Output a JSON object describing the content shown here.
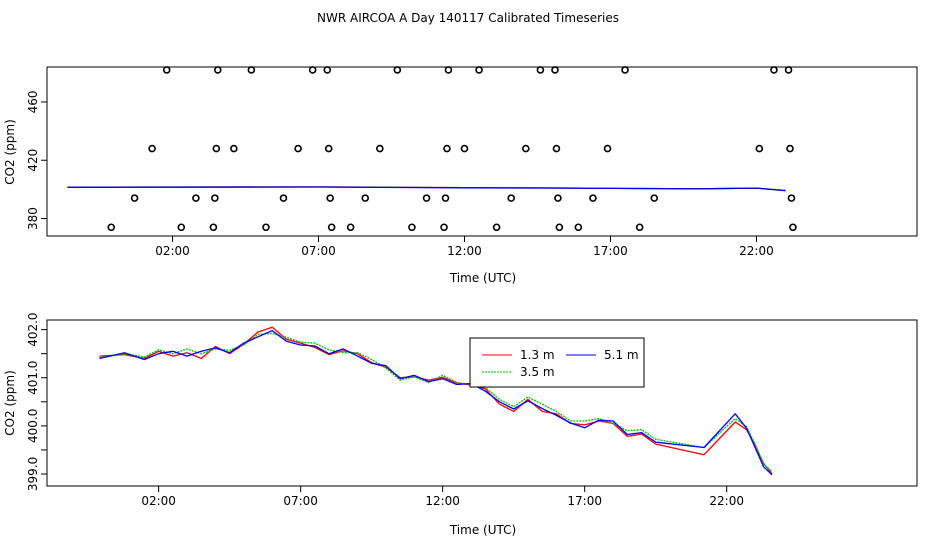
{
  "page": {
    "title": "NWR AIRCOA A  Day 140117  Calibrated Timeseries"
  },
  "chart_data": [
    {
      "type": "scatter",
      "xlabel": "Time (UTC)",
      "ylabel": "CO2 (ppm)",
      "xlim": [
        -2.3,
        27.5
      ],
      "ylim": [
        368,
        484
      ],
      "xticks": [
        {
          "value": 2,
          "label": "02:00"
        },
        {
          "value": 7,
          "label": "07:00"
        },
        {
          "value": 12,
          "label": "12:00"
        },
        {
          "value": 17,
          "label": "17:00"
        },
        {
          "value": 22,
          "label": "22:00"
        }
      ],
      "yticks": [
        {
          "value": 380,
          "label": "380"
        },
        {
          "value": 420,
          "label": "420"
        },
        {
          "value": 460,
          "label": "460"
        }
      ],
      "flag_points": [
        {
          "x": -0.1,
          "y": 374
        },
        {
          "x": 0.7,
          "y": 394
        },
        {
          "x": 1.3,
          "y": 428
        },
        {
          "x": 1.8,
          "y": 482
        },
        {
          "x": 2.3,
          "y": 374
        },
        {
          "x": 2.8,
          "y": 394
        },
        {
          "x": 3.4,
          "y": 374
        },
        {
          "x": 3.45,
          "y": 394
        },
        {
          "x": 3.5,
          "y": 428
        },
        {
          "x": 3.55,
          "y": 482
        },
        {
          "x": 4.1,
          "y": 428
        },
        {
          "x": 4.7,
          "y": 482
        },
        {
          "x": 5.2,
          "y": 374
        },
        {
          "x": 5.8,
          "y": 394
        },
        {
          "x": 6.3,
          "y": 428
        },
        {
          "x": 6.8,
          "y": 482
        },
        {
          "x": 7.3,
          "y": 482
        },
        {
          "x": 7.35,
          "y": 428
        },
        {
          "x": 7.4,
          "y": 394
        },
        {
          "x": 7.45,
          "y": 374
        },
        {
          "x": 8.1,
          "y": 374
        },
        {
          "x": 8.6,
          "y": 394
        },
        {
          "x": 9.1,
          "y": 428
        },
        {
          "x": 9.7,
          "y": 482
        },
        {
          "x": 10.2,
          "y": 374
        },
        {
          "x": 10.7,
          "y": 394
        },
        {
          "x": 11.3,
          "y": 374
        },
        {
          "x": 11.35,
          "y": 394
        },
        {
          "x": 11.4,
          "y": 428
        },
        {
          "x": 11.45,
          "y": 482
        },
        {
          "x": 12.0,
          "y": 428
        },
        {
          "x": 12.5,
          "y": 482
        },
        {
          "x": 13.1,
          "y": 374
        },
        {
          "x": 13.6,
          "y": 394
        },
        {
          "x": 14.1,
          "y": 428
        },
        {
          "x": 14.6,
          "y": 482
        },
        {
          "x": 15.1,
          "y": 482
        },
        {
          "x": 15.15,
          "y": 428
        },
        {
          "x": 15.2,
          "y": 394
        },
        {
          "x": 15.25,
          "y": 374
        },
        {
          "x": 15.9,
          "y": 374
        },
        {
          "x": 16.4,
          "y": 394
        },
        {
          "x": 16.9,
          "y": 428
        },
        {
          "x": 17.5,
          "y": 482
        },
        {
          "x": 18.0,
          "y": 374
        },
        {
          "x": 18.5,
          "y": 394
        },
        {
          "x": 22.1,
          "y": 428
        },
        {
          "x": 22.6,
          "y": 482
        },
        {
          "x": 23.1,
          "y": 482
        },
        {
          "x": 23.15,
          "y": 428
        },
        {
          "x": 23.2,
          "y": 394
        },
        {
          "x": 23.25,
          "y": 374
        }
      ],
      "series": [
        {
          "color": "#ff0000",
          "x": [
            -1.6,
            2,
            7,
            12,
            15,
            18,
            20,
            22,
            23
          ],
          "values": [
            401.5,
            401.6,
            401.7,
            401.2,
            401.0,
            400.6,
            400.4,
            400.9,
            399.2
          ]
        },
        {
          "color": "#00bb00",
          "x": [
            -1.6,
            2,
            7,
            12,
            15,
            18,
            20,
            22,
            23
          ],
          "values": [
            401.5,
            401.6,
            401.6,
            401.2,
            401.0,
            400.6,
            400.4,
            400.9,
            399.2
          ]
        },
        {
          "color": "#0000ff",
          "x": [
            -1.6,
            2,
            7,
            12,
            15,
            18,
            20,
            22,
            23
          ],
          "values": [
            401.4,
            401.5,
            401.6,
            401.1,
            400.9,
            400.6,
            400.4,
            400.9,
            399.1
          ]
        }
      ]
    },
    {
      "type": "line",
      "xlabel": "Time (UTC)",
      "ylabel": "CO2 (ppm)",
      "xlim": [
        -1.93,
        28.7
      ],
      "ylim": [
        398.75,
        402.2
      ],
      "xticks": [
        {
          "value": 2,
          "label": "02:00"
        },
        {
          "value": 7,
          "label": "07:00"
        },
        {
          "value": 12,
          "label": "12:00"
        },
        {
          "value": 17,
          "label": "17:00"
        },
        {
          "value": 22,
          "label": "22:00"
        }
      ],
      "yticks": [
        {
          "value": 399.0,
          "label": "399.0"
        },
        {
          "value": 399.5,
          "label": ""
        },
        {
          "value": 400.0,
          "label": "400.0"
        },
        {
          "value": 400.5,
          "label": ""
        },
        {
          "value": 401.0,
          "label": "401.0"
        },
        {
          "value": 401.5,
          "label": ""
        },
        {
          "value": 402.0,
          "label": "402.0"
        }
      ],
      "legend": {
        "position": "top-center",
        "columns": 2
      },
      "series": [
        {
          "name": "1.3 m",
          "color": "#ff0000",
          "x": [
            -0.08,
            0.8,
            1.5,
            2.0,
            2.5,
            3.0,
            3.5,
            4.0,
            4.5,
            5.0,
            5.5,
            6.0,
            6.5,
            7.0,
            7.5,
            8.0,
            8.5,
            9.0,
            9.5,
            10.0,
            10.5,
            11.0,
            11.5,
            12.0,
            12.5,
            13.0,
            13.5,
            14.0,
            14.5,
            15.0,
            15.5,
            16.0,
            16.5,
            17.0,
            17.5,
            18.0,
            18.5,
            19.0,
            19.5,
            21.2,
            22.3,
            22.7,
            23.0,
            23.3,
            23.6
          ],
          "values": [
            401.45,
            401.48,
            401.4,
            401.55,
            401.45,
            401.52,
            401.4,
            401.65,
            401.5,
            401.7,
            401.95,
            402.05,
            401.8,
            401.72,
            401.63,
            401.48,
            401.56,
            401.5,
            401.31,
            401.22,
            401.0,
            401.02,
            400.95,
            401.01,
            400.89,
            400.85,
            400.77,
            400.45,
            400.3,
            400.55,
            400.3,
            400.25,
            400.05,
            400.02,
            400.1,
            400.05,
            399.78,
            399.83,
            399.62,
            399.4,
            400.08,
            399.92,
            399.6,
            399.22,
            399.0
          ]
        },
        {
          "name": "3.5 m",
          "color": "#00bb00",
          "x": [
            -0.08,
            0.8,
            1.5,
            2.0,
            2.5,
            3.0,
            3.5,
            4.0,
            4.5,
            5.0,
            5.5,
            6.0,
            6.5,
            7.0,
            7.5,
            8.0,
            8.5,
            9.0,
            9.5,
            10.0,
            10.5,
            11.0,
            11.5,
            12.0,
            12.5,
            13.0,
            13.5,
            14.0,
            14.5,
            15.0,
            15.5,
            16.0,
            16.5,
            17.0,
            17.5,
            18.0,
            18.5,
            19.0,
            19.5,
            21.2,
            22.3,
            22.7,
            23.0,
            23.3,
            23.6
          ],
          "values": [
            401.42,
            401.5,
            401.43,
            401.58,
            401.5,
            401.6,
            401.5,
            401.6,
            401.57,
            401.68,
            401.9,
            401.92,
            401.84,
            401.74,
            401.72,
            401.58,
            401.52,
            401.52,
            401.38,
            401.2,
            400.95,
            401.02,
            400.9,
            401.05,
            400.9,
            400.86,
            400.8,
            400.55,
            400.4,
            400.6,
            400.45,
            400.3,
            400.1,
            400.1,
            400.15,
            400.05,
            399.9,
            399.92,
            399.72,
            399.55,
            400.15,
            399.98,
            399.62,
            399.2,
            399.05
          ]
        },
        {
          "name": "5.1 m",
          "color": "#0000ff",
          "x": [
            -0.08,
            0.8,
            1.5,
            2.0,
            2.5,
            3.0,
            3.5,
            4.0,
            4.5,
            5.0,
            5.5,
            6.0,
            6.5,
            7.0,
            7.5,
            8.0,
            8.5,
            9.0,
            9.5,
            10.0,
            10.5,
            11.0,
            11.5,
            12.0,
            12.5,
            13.0,
            13.5,
            14.0,
            14.5,
            15.0,
            15.5,
            16.0,
            16.5,
            17.0,
            17.5,
            18.0,
            18.5,
            19.0,
            19.5,
            21.2,
            22.3,
            22.7,
            23.0,
            23.3,
            23.6
          ],
          "values": [
            401.4,
            401.52,
            401.38,
            401.5,
            401.55,
            401.45,
            401.55,
            401.62,
            401.52,
            401.72,
            401.85,
            401.98,
            401.76,
            401.68,
            401.66,
            401.5,
            401.6,
            401.45,
            401.3,
            401.25,
            400.98,
            401.05,
            400.92,
            400.98,
            400.86,
            400.88,
            400.72,
            400.5,
            400.35,
            400.52,
            400.36,
            400.22,
            400.06,
            399.96,
            400.12,
            400.1,
            399.82,
            399.86,
            399.66,
            399.55,
            400.25,
            399.95,
            399.55,
            399.15,
            398.98
          ]
        }
      ]
    }
  ]
}
